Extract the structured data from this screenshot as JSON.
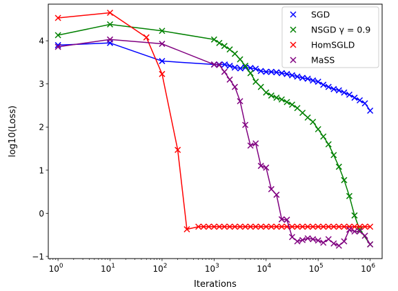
{
  "chart_data": {
    "type": "line",
    "title": "",
    "xlabel": "Iterations",
    "ylabel": "log10(Loss)",
    "xscale": "log",
    "xlim": [
      0.65,
      1700000
    ],
    "ylim": [
      -1.05,
      4.85
    ],
    "x_ticks": [
      1,
      10,
      100,
      1000,
      10000,
      100000,
      1000000
    ],
    "x_tick_labels": [
      {
        "base": "10",
        "exp": "0"
      },
      {
        "base": "10",
        "exp": "1"
      },
      {
        "base": "10",
        "exp": "2"
      },
      {
        "base": "10",
        "exp": "3"
      },
      {
        "base": "10",
        "exp": "4"
      },
      {
        "base": "10",
        "exp": "5"
      },
      {
        "base": "10",
        "exp": "6"
      }
    ],
    "y_ticks": [
      -1,
      0,
      1,
      2,
      3,
      4
    ],
    "y_tick_labels": [
      "−1",
      "0",
      "1",
      "2",
      "3",
      "4"
    ],
    "grid": false,
    "legend_position": "top-right",
    "marker": "x",
    "series": [
      {
        "name": "SGD",
        "color": "#0000ff",
        "points": [
          [
            1,
            3.9
          ],
          [
            10,
            3.95
          ],
          [
            100,
            3.53
          ],
          [
            1000,
            3.45
          ],
          [
            1250,
            3.45
          ],
          [
            1600,
            3.45
          ],
          [
            2000,
            3.42
          ],
          [
            2500,
            3.38
          ],
          [
            3200,
            3.36
          ],
          [
            4000,
            3.38
          ],
          [
            5000,
            3.37
          ],
          [
            6300,
            3.35
          ],
          [
            7900,
            3.3
          ],
          [
            10000,
            3.28
          ],
          [
            12600,
            3.28
          ],
          [
            15800,
            3.27
          ],
          [
            20000,
            3.25
          ],
          [
            25100,
            3.23
          ],
          [
            31600,
            3.2
          ],
          [
            39800,
            3.17
          ],
          [
            50100,
            3.14
          ],
          [
            63100,
            3.12
          ],
          [
            79400,
            3.08
          ],
          [
            100000,
            3.05
          ],
          [
            125900,
            2.98
          ],
          [
            158500,
            2.93
          ],
          [
            199500,
            2.88
          ],
          [
            251200,
            2.85
          ],
          [
            316200,
            2.8
          ],
          [
            398100,
            2.75
          ],
          [
            501200,
            2.68
          ],
          [
            631000,
            2.62
          ],
          [
            794300,
            2.55
          ],
          [
            1000000,
            2.38
          ]
        ]
      },
      {
        "name": "NSGD γ = 0.9",
        "color": "#008000",
        "points": [
          [
            1,
            4.13
          ],
          [
            10,
            4.38
          ],
          [
            100,
            4.23
          ],
          [
            1000,
            4.03
          ],
          [
            1260,
            3.95
          ],
          [
            1580,
            3.88
          ],
          [
            2000,
            3.8
          ],
          [
            2510,
            3.7
          ],
          [
            3160,
            3.57
          ],
          [
            3980,
            3.42
          ],
          [
            5010,
            3.25
          ],
          [
            6310,
            3.05
          ],
          [
            7940,
            2.93
          ],
          [
            10000,
            2.8
          ],
          [
            12590,
            2.73
          ],
          [
            15850,
            2.68
          ],
          [
            19950,
            2.64
          ],
          [
            25120,
            2.58
          ],
          [
            31620,
            2.52
          ],
          [
            39810,
            2.44
          ],
          [
            50120,
            2.33
          ],
          [
            63100,
            2.22
          ],
          [
            79430,
            2.12
          ],
          [
            100000,
            1.95
          ],
          [
            125900,
            1.78
          ],
          [
            158500,
            1.6
          ],
          [
            199500,
            1.35
          ],
          [
            251200,
            1.08
          ],
          [
            316200,
            0.77
          ],
          [
            398100,
            0.4
          ],
          [
            501200,
            -0.05
          ],
          [
            631000,
            -0.38
          ],
          [
            1000000,
            -0.72
          ]
        ]
      },
      {
        "name": "HomSGLD",
        "color": "#ff0000",
        "points": [
          [
            1,
            4.53
          ],
          [
            10,
            4.65
          ],
          [
            50,
            4.08
          ],
          [
            100,
            3.23
          ],
          [
            200,
            1.47
          ],
          [
            300,
            -0.37
          ],
          [
            500,
            -0.31
          ],
          [
            630,
            -0.31
          ],
          [
            790,
            -0.31
          ],
          [
            1000,
            -0.31
          ],
          [
            1260,
            -0.31
          ],
          [
            1580,
            -0.31
          ],
          [
            2000,
            -0.31
          ],
          [
            2510,
            -0.31
          ],
          [
            3160,
            -0.31
          ],
          [
            3980,
            -0.31
          ],
          [
            5010,
            -0.31
          ],
          [
            6310,
            -0.31
          ],
          [
            7940,
            -0.31
          ],
          [
            10000,
            -0.31
          ],
          [
            12590,
            -0.31
          ],
          [
            15850,
            -0.31
          ],
          [
            19950,
            -0.31
          ],
          [
            25120,
            -0.31
          ],
          [
            31620,
            -0.31
          ],
          [
            39810,
            -0.31
          ],
          [
            50120,
            -0.31
          ],
          [
            63100,
            -0.31
          ],
          [
            79430,
            -0.31
          ],
          [
            100000,
            -0.31
          ],
          [
            125900,
            -0.31
          ],
          [
            158500,
            -0.31
          ],
          [
            199500,
            -0.31
          ],
          [
            251200,
            -0.31
          ],
          [
            316200,
            -0.31
          ],
          [
            398100,
            -0.31
          ],
          [
            501200,
            -0.31
          ],
          [
            631000,
            -0.31
          ],
          [
            794300,
            -0.31
          ],
          [
            1000000,
            -0.31
          ]
        ]
      },
      {
        "name": "MaSS",
        "color": "#800080",
        "points": [
          [
            1,
            3.86
          ],
          [
            10,
            4.03
          ],
          [
            100,
            3.93
          ],
          [
            1000,
            3.45
          ],
          [
            1260,
            3.44
          ],
          [
            1580,
            3.28
          ],
          [
            2000,
            3.1
          ],
          [
            2510,
            2.93
          ],
          [
            3160,
            2.6
          ],
          [
            3980,
            2.05
          ],
          [
            5010,
            1.57
          ],
          [
            6310,
            1.62
          ],
          [
            7940,
            1.1
          ],
          [
            10000,
            1.06
          ],
          [
            12590,
            0.56
          ],
          [
            15850,
            0.43
          ],
          [
            19950,
            -0.14
          ],
          [
            25120,
            -0.15
          ],
          [
            31620,
            -0.55
          ],
          [
            39810,
            -0.65
          ],
          [
            50120,
            -0.62
          ],
          [
            63100,
            -0.58
          ],
          [
            79430,
            -0.6
          ],
          [
            100000,
            -0.63
          ],
          [
            125900,
            -0.68
          ],
          [
            158500,
            -0.6
          ],
          [
            199500,
            -0.7
          ],
          [
            251200,
            -0.75
          ],
          [
            316200,
            -0.65
          ],
          [
            398100,
            -0.38
          ],
          [
            501200,
            -0.42
          ],
          [
            631000,
            -0.42
          ],
          [
            794300,
            -0.52
          ],
          [
            1000000,
            -0.72
          ]
        ]
      }
    ]
  }
}
